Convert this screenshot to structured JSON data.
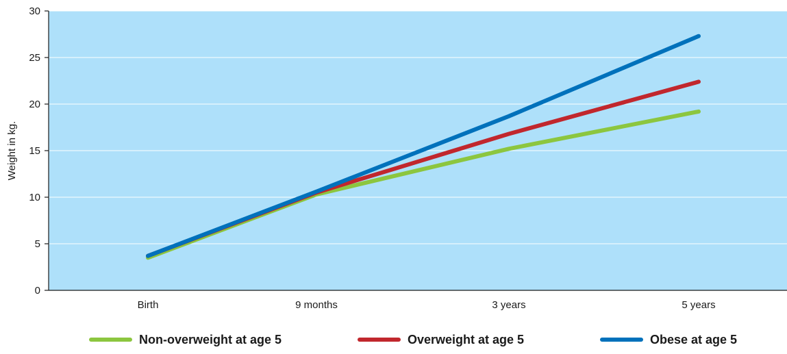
{
  "chart_data": {
    "type": "line",
    "title": "",
    "xlabel": "",
    "ylabel": "Weight in kg.",
    "categories": [
      "Birth",
      "9 months",
      "3 years",
      "5 years"
    ],
    "ylim": [
      0,
      30
    ],
    "yticks": [
      0,
      5,
      10,
      15,
      20,
      25,
      30
    ],
    "grid": true,
    "legend_position": "bottom",
    "background_color": "#aee0fa",
    "series": [
      {
        "name": "Non-overweight at age 5",
        "values": [
          3.5,
          10.3,
          15.2,
          19.2
        ],
        "color": "#8cc63f"
      },
      {
        "name": "Overweight at age 5",
        "values": [
          3.7,
          10.5,
          16.8,
          22.4
        ],
        "color": "#c1272d"
      },
      {
        "name": "Obese at age 5",
        "values": [
          3.7,
          10.6,
          18.7,
          27.3
        ],
        "color": "#0071bb"
      }
    ]
  }
}
